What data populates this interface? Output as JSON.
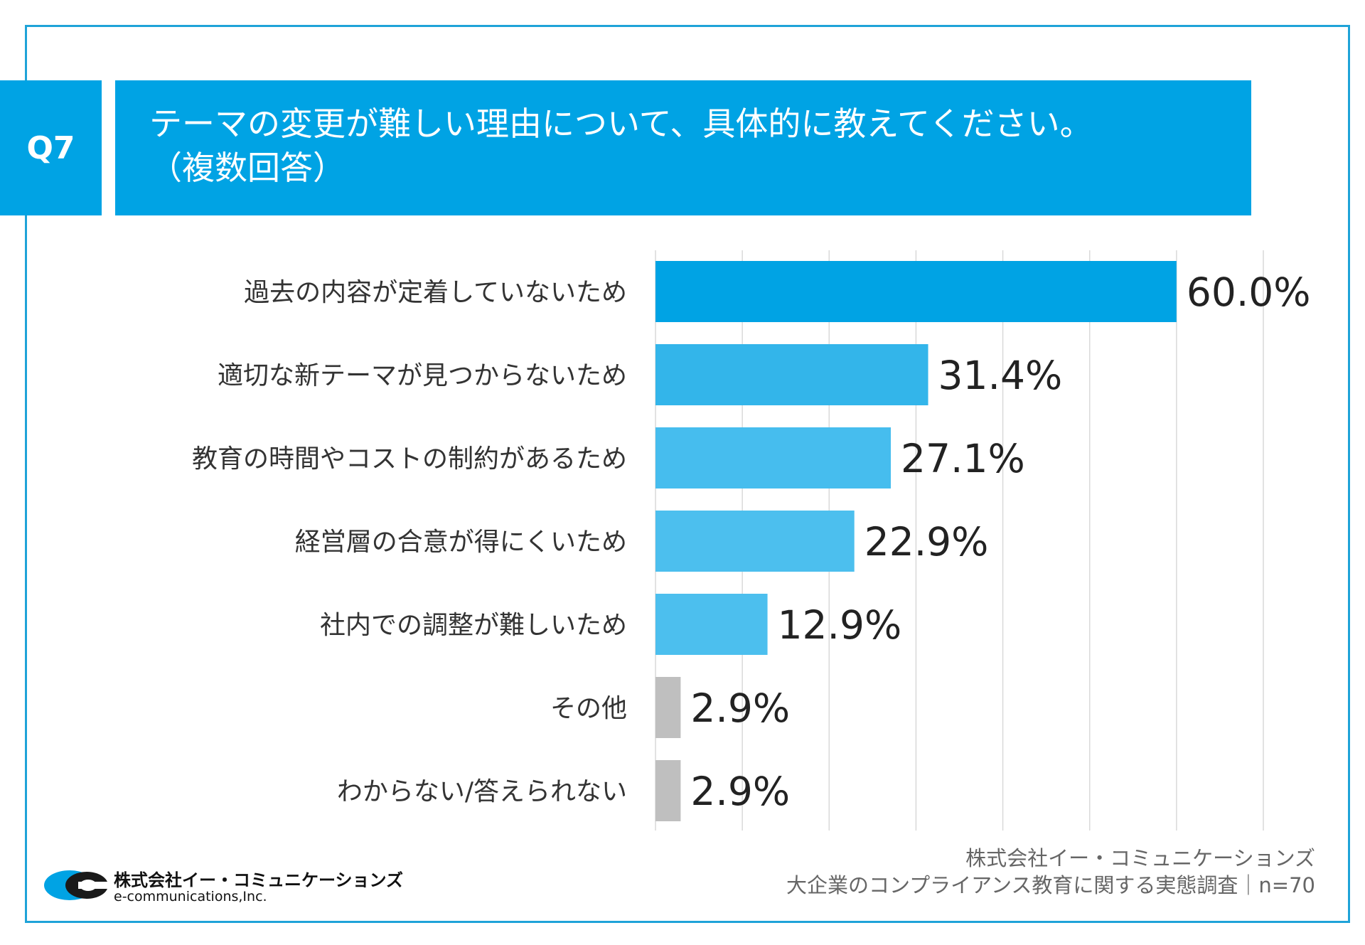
{
  "header": {
    "question_no": "Q7",
    "title": "テーマの変更が難しい理由について、具体的に教えてください。",
    "subtitle": "（複数回答）"
  },
  "chart_data": {
    "type": "bar",
    "orientation": "horizontal",
    "categories": [
      "過去の内容が定着していないため",
      "適切な新テーマが見つからないため",
      "教育の時間やコストの制約があるため",
      "経営層の合意が得にくいため",
      "社内での調整が難しいため",
      "その他",
      "わからない/答えられない"
    ],
    "values": [
      60.0,
      31.4,
      27.1,
      22.9,
      12.9,
      2.9,
      2.9
    ],
    "value_labels": [
      "60.0%",
      "31.4%",
      "27.1%",
      "22.9%",
      "12.9%",
      "2.9%",
      "2.9%"
    ],
    "colors": [
      "#00a3e4",
      "#33b5ea",
      "#46bdee",
      "#4cbfee",
      "#4cbfee",
      "#bfbfbf",
      "#bfbfbf"
    ],
    "xlim": [
      0,
      70
    ],
    "grid_step": 10,
    "grid": true,
    "title": "",
    "xlabel": "",
    "ylabel": ""
  },
  "footer": {
    "company": "株式会社イー・コミュニケーションズ",
    "survey": "大企業のコンプライアンス教育に関する実態調査｜n=70"
  },
  "logo": {
    "name_jp": "株式会社イー・コミュニケーションズ",
    "name_en": "e-communications,Inc."
  }
}
